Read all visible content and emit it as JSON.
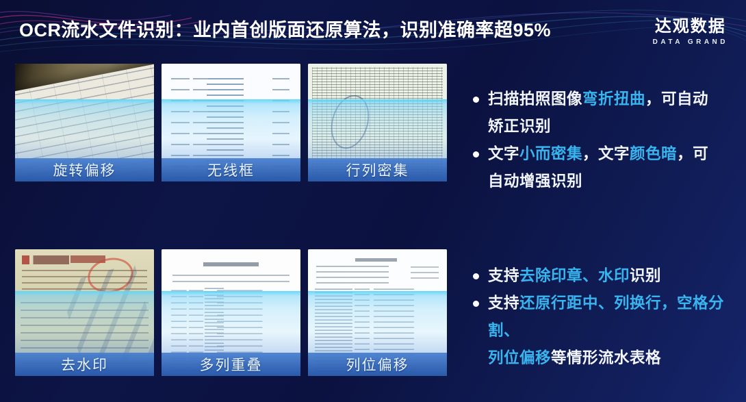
{
  "page": {
    "title": "OCR流水文件识别：业内首创版面还原算法，识别准确率超95%",
    "brand": {
      "name": "达观数据",
      "subtitle": "DATA GRAND"
    }
  },
  "samples": [
    {
      "label": "旋转偏移"
    },
    {
      "label": "无线框"
    },
    {
      "label": "行列密集"
    },
    {
      "label": "去水印"
    },
    {
      "label": "多列重叠"
    },
    {
      "label": "列位偏移"
    }
  ],
  "bullets_top": [
    {
      "segments": [
        {
          "text": "扫描拍照图像",
          "highlight": false
        },
        {
          "text": "弯折扭曲",
          "highlight": true
        },
        {
          "text": "，可自动\n矫正识别",
          "highlight": false
        }
      ]
    },
    {
      "segments": [
        {
          "text": "文字",
          "highlight": false
        },
        {
          "text": "小而密集",
          "highlight": true
        },
        {
          "text": "，文字",
          "highlight": false
        },
        {
          "text": "颜色暗",
          "highlight": true
        },
        {
          "text": "，可\n自动增强识别",
          "highlight": false
        }
      ]
    }
  ],
  "bullets_bottom": [
    {
      "segments": [
        {
          "text": "支持",
          "highlight": false
        },
        {
          "text": "去除印章、水印",
          "highlight": true
        },
        {
          "text": "识别",
          "highlight": false
        }
      ]
    },
    {
      "segments": [
        {
          "text": "支持",
          "highlight": false
        },
        {
          "text": "还原行距中、列换行，空格分割、\n列位偏移",
          "highlight": true
        },
        {
          "text": "等情形流水表格",
          "highlight": false
        }
      ]
    }
  ],
  "colors": {
    "background": "#0c1342",
    "accent_highlight": "#38b4ee",
    "label_bar_blue": "#2b5db2",
    "scan_band_cyan": "#5ed6f8",
    "wave_pink": "#d6348f",
    "wave_cyan": "#3fb6e8"
  }
}
